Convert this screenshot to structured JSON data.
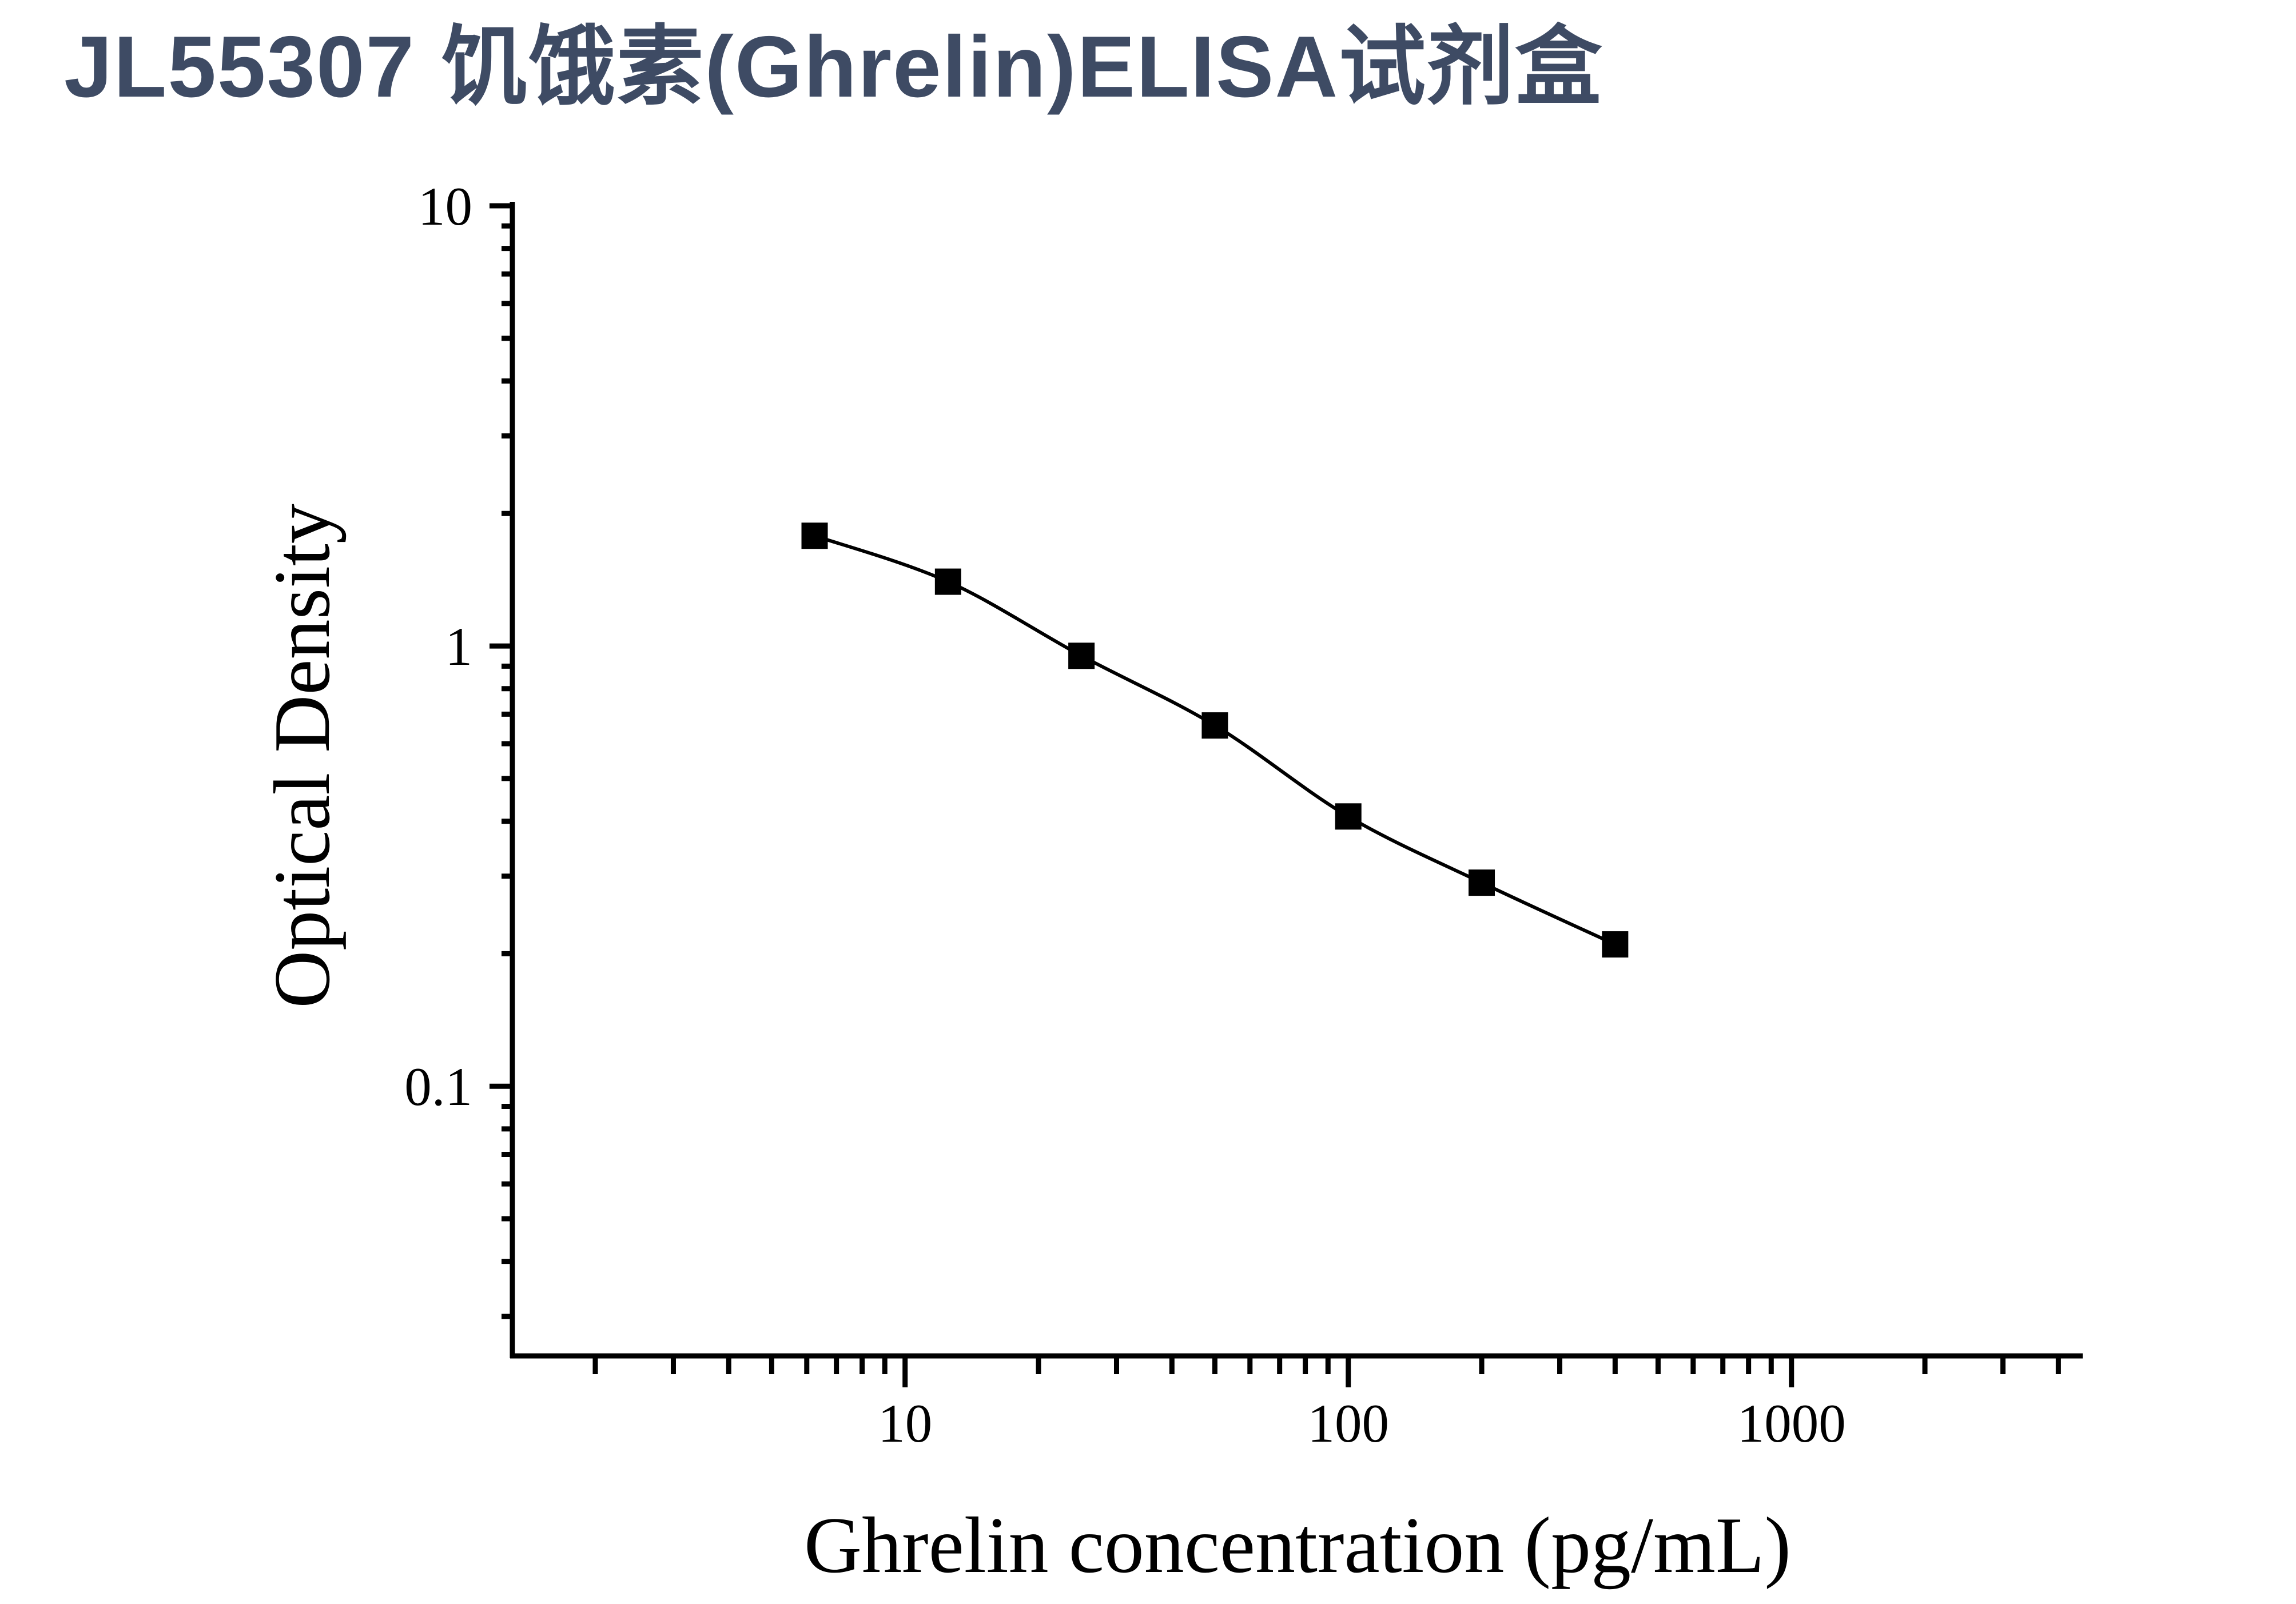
{
  "header": {
    "title": "JL55307 饥饿素(Ghrelin)ELISA试剂盒",
    "title_color": "#3E4B64"
  },
  "chart_data": {
    "type": "scatter",
    "subtype": "elisa-standard-curve",
    "title": "",
    "xlabel": "Ghrelin concentration (pg/mL)",
    "ylabel": "Optical Density",
    "x_scale": "log",
    "y_scale": "log",
    "series": [
      {
        "name": "standard-curve",
        "x": [
          6.25,
          12.5,
          25,
          50,
          100,
          200,
          400
        ],
        "y": [
          1.78,
          1.4,
          0.95,
          0.66,
          0.41,
          0.29,
          0.21
        ],
        "marker": "filled-square",
        "line": "smooth",
        "color": "#000000"
      }
    ],
    "x_major_ticks": [
      10,
      100,
      1000
    ],
    "x_major_tick_labels": [
      "10",
      "100",
      "1000"
    ],
    "y_major_ticks": [
      10,
      1,
      0.1
    ],
    "y_major_tick_labels": [
      "10",
      "1",
      "0.1"
    ],
    "xlim": [
      1.3,
      4540
    ],
    "ylim": [
      0.0244,
      10.09
    ],
    "grid": "off",
    "legend": "none",
    "axis_color": "#000000"
  }
}
